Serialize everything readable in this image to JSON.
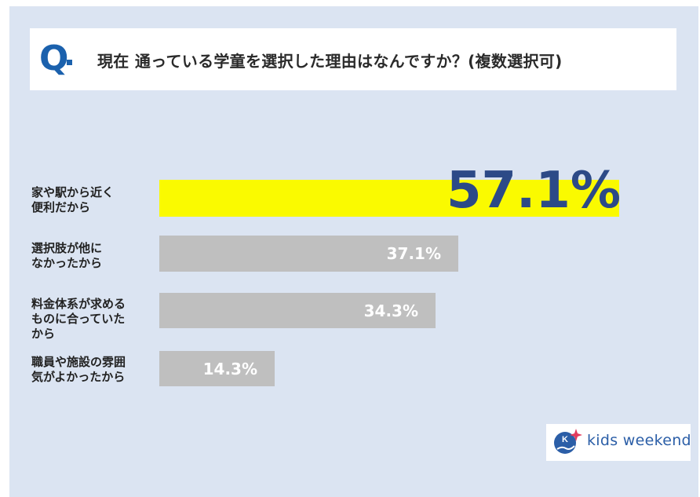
{
  "question": {
    "mark": "Q",
    "text": "現在 通っている学童を選択した理由はなんですか？(複数選択可)"
  },
  "logo": {
    "text": "kids weekend",
    "icon": "kids-weekend-logo-icon"
  },
  "colors": {
    "background": "#dbe4f2",
    "highlight_bar": "#fafa00",
    "bar": "#bfbfbf",
    "highlight_value": "#2c4a87",
    "value": "#ffffff",
    "accent": "#1b61ad"
  },
  "chart_data": {
    "type": "bar",
    "orientation": "horizontal",
    "title": "現在 通っている学童を選択した理由はなんですか？(複数選択可)",
    "categories": [
      "家や駅から近く便利だから",
      "選択肢が他になかったから",
      "料金体系が求めるものに合っていたから",
      "職員や施設の雰囲気がよかったから"
    ],
    "category_lines": [
      [
        "家や駅から近く",
        "便利だから"
      ],
      [
        "選択肢が他に",
        "なかったから"
      ],
      [
        "料金体系が求める",
        "ものに合っていた",
        "から"
      ],
      [
        "職員や施設の雰囲",
        "気がよかったから"
      ]
    ],
    "values": [
      57.1,
      37.1,
      34.3,
      14.3
    ],
    "value_labels": [
      "57.1%",
      "37.1%",
      "34.3%",
      "14.3%"
    ],
    "unit": "%",
    "xlim": [
      0,
      57.1
    ],
    "grid": false,
    "legend": "none"
  }
}
